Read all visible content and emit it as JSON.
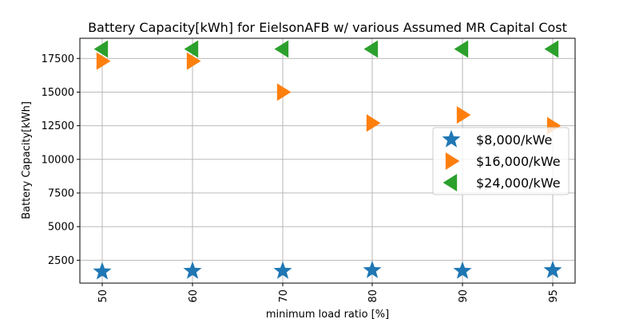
{
  "chart_data": {
    "type": "scatter",
    "title": "Battery Capacity[kWh] for EielsonAFB w/ various Assumed MR Capital Cost",
    "xlabel": "minimum load ratio [%]",
    "ylabel": "Battery Capacity[kWh]",
    "categories": [
      "50",
      "60",
      "70",
      "80",
      "90",
      "95"
    ],
    "yticks": [
      2500,
      5000,
      7500,
      10000,
      12500,
      15000,
      17500
    ],
    "ylim": [
      800,
      19000
    ],
    "grid": true,
    "legend_position": "center-right",
    "series": [
      {
        "name": "$8,000/kWe",
        "marker": "star",
        "color": "#1f77b4",
        "values": [
          1650,
          1700,
          1700,
          1750,
          1700,
          1750
        ]
      },
      {
        "name": "$16,000/kWe",
        "marker": "triangle-right",
        "color": "#ff7f0e",
        "values": [
          17300,
          17300,
          15000,
          12700,
          13300,
          12500
        ]
      },
      {
        "name": "$24,000/kWe",
        "marker": "triangle-left",
        "color": "#2ca02c",
        "values": [
          18200,
          18200,
          18200,
          18200,
          18200,
          18200
        ]
      }
    ]
  }
}
